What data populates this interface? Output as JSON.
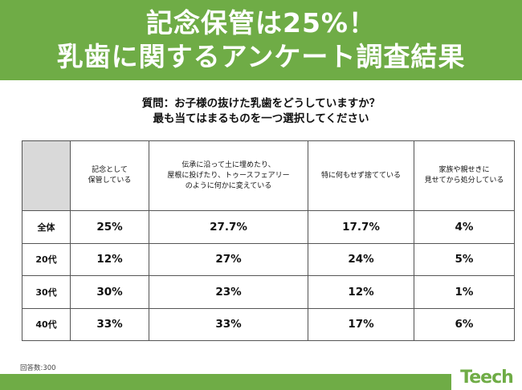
{
  "banner": {
    "title_line1": "記念保管は25%！",
    "title_line2": "乳歯に関するアンケート調査結果"
  },
  "question": {
    "line1": "質問：お子様の抜けた乳歯をどうしていますか？",
    "line2": "最も当てはまるものを一つ選択してください"
  },
  "table": {
    "headers": [
      "",
      "記念として\n保管している",
      "伝承に沿って土に埋めたり、\n屋根に投げたり、トゥースフェアリー\nのように何かに変えている",
      "特に何もせず捨てている",
      "家族や親せきに\n見せてから処分している"
    ],
    "rows": [
      {
        "label": "全体",
        "values": [
          "25%",
          "27.7%",
          "17.7%",
          "4%"
        ]
      },
      {
        "label": "20代",
        "values": [
          "12%",
          "27%",
          "24%",
          "5%"
        ]
      },
      {
        "label": "30代",
        "values": [
          "30%",
          "23%",
          "12%",
          "1%"
        ]
      },
      {
        "label": "40代",
        "values": [
          "33%",
          "33%",
          "17%",
          "6%"
        ]
      }
    ]
  },
  "footnote": "回答数:300",
  "logo": {
    "text": "Teech"
  },
  "colors": {
    "brand_green": "#6fac46",
    "header_gray": "#d9d9d9"
  }
}
